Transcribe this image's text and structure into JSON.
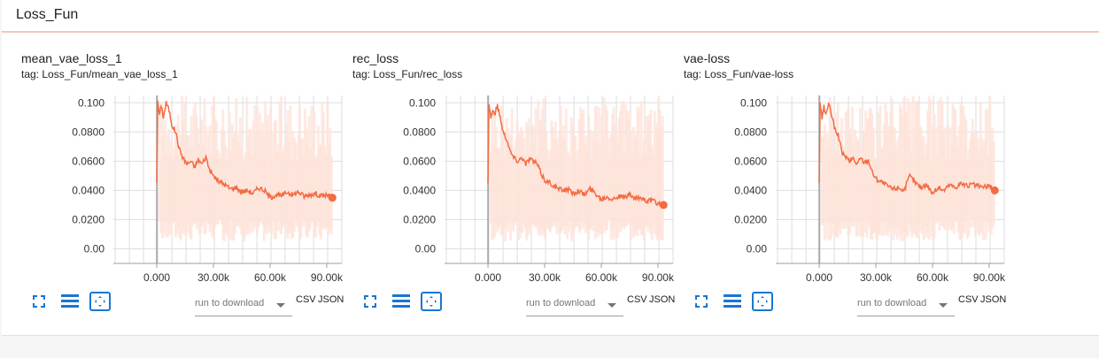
{
  "card": {
    "title": "Loss_Fun"
  },
  "panes": [
    {
      "title": "mean_vae_loss_1",
      "tag": "tag: Loss_Fun/mean_vae_loss_1"
    },
    {
      "title": "rec_loss",
      "tag": "tag: Loss_Fun/rec_loss"
    },
    {
      "title": "vae-loss",
      "tag": "tag: Loss_Fun/vae-loss"
    }
  ],
  "toolbar": {
    "download_placeholder": "run to download",
    "csv_label": "CSV",
    "json_label": "JSON",
    "icons": [
      "fullscreen-icon",
      "log-scale-icon",
      "fit-domain-icon"
    ]
  },
  "colors": {
    "series": "#f36c42",
    "band": "#fde3da",
    "icon": "#1976d2",
    "grid": "#dddddd",
    "axis": "#9e9e9e"
  },
  "chart_data": [
    {
      "type": "line",
      "title": "mean_vae_loss_1",
      "xlim": [
        -23000,
        98000
      ],
      "ylim": [
        -0.01,
        0.105
      ],
      "x_ticks": [
        "0.000",
        "30.00k",
        "60.00k",
        "90.00k"
      ],
      "x_tick_values": [
        0,
        30000,
        60000,
        90000
      ],
      "y_ticks": [
        "0.00",
        "0.0200",
        "0.0400",
        "0.0600",
        "0.0800",
        "0.100"
      ],
      "y_tick_values": [
        0,
        0.02,
        0.04,
        0.06,
        0.08,
        0.1
      ],
      "series": [
        {
          "x": [
            0,
            500,
            1500,
            2500,
            3500,
            5000,
            6500,
            8000,
            10000,
            12000,
            14000,
            16000,
            18000,
            20000,
            22000,
            24000,
            26000,
            28000,
            30000,
            33000,
            36000,
            39000,
            42000,
            45000,
            48000,
            51000,
            54000,
            57000,
            60000,
            63000,
            66000,
            69000,
            72000,
            75000,
            78000,
            81000,
            84000,
            87000,
            90000,
            93000
          ],
          "y": [
            0.045,
            0.1,
            0.092,
            0.098,
            0.09,
            0.1,
            0.095,
            0.085,
            0.08,
            0.068,
            0.062,
            0.058,
            0.06,
            0.056,
            0.061,
            0.058,
            0.063,
            0.054,
            0.05,
            0.046,
            0.044,
            0.041,
            0.042,
            0.039,
            0.04,
            0.038,
            0.042,
            0.04,
            0.035,
            0.037,
            0.036,
            0.039,
            0.037,
            0.039,
            0.036,
            0.037,
            0.038,
            0.036,
            0.037,
            0.035
          ],
          "band_low": 0.005,
          "band_high": 0.105
        }
      ]
    },
    {
      "type": "line",
      "title": "rec_loss",
      "xlim": [
        -23000,
        98000
      ],
      "ylim": [
        -0.01,
        0.105
      ],
      "x_ticks": [
        "0.000",
        "30.00k",
        "60.00k",
        "90.00k"
      ],
      "x_tick_values": [
        0,
        30000,
        60000,
        90000
      ],
      "y_ticks": [
        "0.00",
        "0.0200",
        "0.0400",
        "0.0600",
        "0.0800",
        "0.100"
      ],
      "y_tick_values": [
        0,
        0.02,
        0.04,
        0.06,
        0.08,
        0.1
      ],
      "series": [
        {
          "x": [
            0,
            500,
            1500,
            2500,
            3500,
            5000,
            6500,
            8000,
            10000,
            12000,
            14000,
            16000,
            18000,
            20000,
            22000,
            24000,
            26000,
            28000,
            30000,
            33000,
            36000,
            39000,
            42000,
            45000,
            48000,
            51000,
            54000,
            57000,
            60000,
            63000,
            66000,
            69000,
            72000,
            75000,
            78000,
            81000,
            84000,
            87000,
            90000,
            93000
          ],
          "y": [
            0.045,
            0.1,
            0.09,
            0.095,
            0.092,
            0.098,
            0.09,
            0.08,
            0.075,
            0.066,
            0.062,
            0.06,
            0.063,
            0.058,
            0.062,
            0.06,
            0.058,
            0.052,
            0.047,
            0.045,
            0.042,
            0.04,
            0.041,
            0.038,
            0.04,
            0.037,
            0.041,
            0.038,
            0.034,
            0.036,
            0.034,
            0.036,
            0.035,
            0.037,
            0.034,
            0.035,
            0.033,
            0.033,
            0.031,
            0.03
          ],
          "band_low": 0.005,
          "band_high": 0.105
        }
      ]
    },
    {
      "type": "line",
      "title": "vae-loss",
      "xlim": [
        -23000,
        98000
      ],
      "ylim": [
        -0.01,
        0.105
      ],
      "x_ticks": [
        "0.000",
        "30.00k",
        "60.00k",
        "90.00k"
      ],
      "x_tick_values": [
        0,
        30000,
        60000,
        90000
      ],
      "y_ticks": [
        "0.00",
        "0.0200",
        "0.0400",
        "0.0600",
        "0.0800",
        "0.100"
      ],
      "y_tick_values": [
        0,
        0.02,
        0.04,
        0.06,
        0.08,
        0.1
      ],
      "series": [
        {
          "x": [
            0,
            500,
            1500,
            2500,
            3500,
            5000,
            6500,
            8000,
            10000,
            12000,
            14000,
            16000,
            18000,
            20000,
            22000,
            24000,
            26000,
            28000,
            30000,
            33000,
            36000,
            39000,
            42000,
            45000,
            48000,
            51000,
            54000,
            57000,
            60000,
            63000,
            66000,
            69000,
            72000,
            75000,
            78000,
            81000,
            84000,
            87000,
            90000,
            93000
          ],
          "y": [
            0.045,
            0.1,
            0.09,
            0.097,
            0.092,
            0.099,
            0.092,
            0.083,
            0.078,
            0.066,
            0.063,
            0.06,
            0.062,
            0.058,
            0.062,
            0.059,
            0.061,
            0.053,
            0.048,
            0.046,
            0.043,
            0.041,
            0.042,
            0.04,
            0.05,
            0.045,
            0.042,
            0.044,
            0.038,
            0.042,
            0.04,
            0.044,
            0.042,
            0.045,
            0.043,
            0.044,
            0.043,
            0.042,
            0.043,
            0.04
          ],
          "band_low": 0.005,
          "band_high": 0.105
        }
      ]
    }
  ]
}
